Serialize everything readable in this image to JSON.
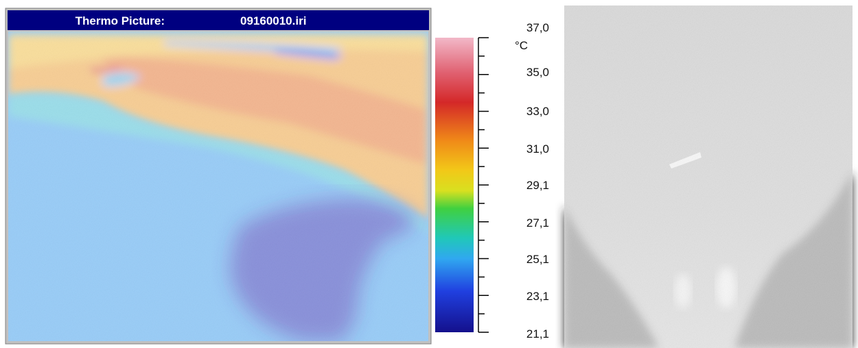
{
  "window": {
    "title": "Thermo Picture:",
    "filename": "09160010.iri"
  },
  "colorbar": {
    "unit": "°C",
    "labels": [
      "37,0",
      "35,0",
      "33,0",
      "31,0",
      "29,1",
      "27,1",
      "25,1",
      "23,1",
      "21,1"
    ]
  }
}
